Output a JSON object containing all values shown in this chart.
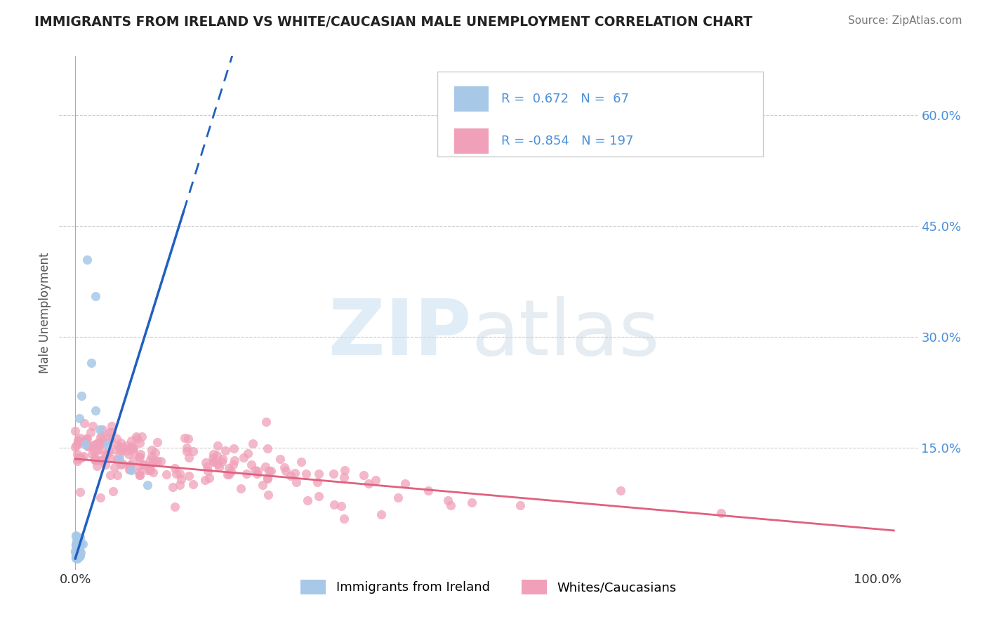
{
  "title": "IMMIGRANTS FROM IRELAND VS WHITE/CAUCASIAN MALE UNEMPLOYMENT CORRELATION CHART",
  "source": "Source: ZipAtlas.com",
  "ylabel": "Male Unemployment",
  "blue_R": 0.672,
  "blue_N": 67,
  "pink_R": -0.854,
  "pink_N": 197,
  "blue_color": "#a8c8e8",
  "pink_color": "#f0a0b8",
  "blue_line_color": "#2060c0",
  "pink_line_color": "#e06080",
  "legend_label_blue": "Immigrants from Ireland",
  "legend_label_pink": "Whites/Caucasians",
  "background_color": "#ffffff",
  "grid_color": "#cccccc",
  "title_color": "#222222",
  "source_color": "#777777",
  "tick_color": "#4a90d9",
  "axis_label_color": "#555555"
}
